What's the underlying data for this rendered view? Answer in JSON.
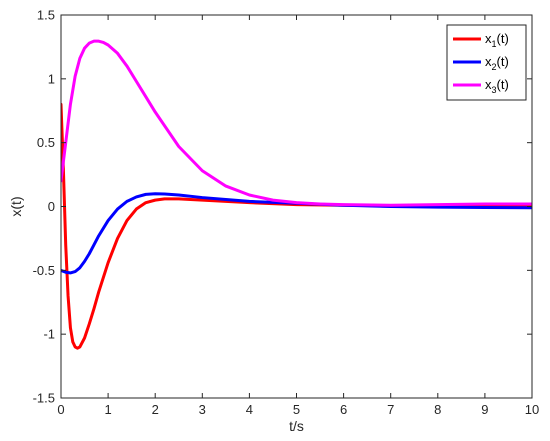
{
  "chart_data": {
    "type": "line",
    "title": "",
    "xlabel": "t/s",
    "ylabel": "x(t)",
    "xlim": [
      0,
      10
    ],
    "ylim": [
      -1.5,
      1.5
    ],
    "xticks": [
      0,
      1,
      2,
      3,
      4,
      5,
      6,
      7,
      8,
      9,
      10
    ],
    "xtick_labels": [
      "0",
      "1",
      "2",
      "3",
      "4",
      "5",
      "6",
      "7",
      "8",
      "9",
      "10"
    ],
    "yticks": [
      -1.5,
      -1,
      -0.5,
      0,
      0.5,
      1,
      1.5
    ],
    "ytick_labels": [
      "-1.5",
      "-1",
      "-0.5",
      "0",
      "0.5",
      "1",
      "1.5"
    ],
    "grid": false,
    "legend_position": "top-right",
    "series": [
      {
        "name": "x1(t)",
        "legend_base": "x",
        "legend_sub": "1",
        "legend_suffix": "(t)",
        "color": "#ff0000",
        "x": [
          0,
          0.05,
          0.1,
          0.15,
          0.2,
          0.25,
          0.3,
          0.35,
          0.4,
          0.5,
          0.6,
          0.7,
          0.8,
          1.0,
          1.2,
          1.4,
          1.6,
          1.8,
          2.0,
          2.2,
          2.5,
          3.0,
          4.0,
          5.0,
          6.0,
          7.0,
          8.0,
          9.0,
          10.0
        ],
        "y": [
          0.8,
          0.3,
          -0.3,
          -0.7,
          -0.95,
          -1.06,
          -1.1,
          -1.11,
          -1.1,
          -1.03,
          -0.92,
          -0.8,
          -0.67,
          -0.44,
          -0.25,
          -0.11,
          -0.02,
          0.03,
          0.05,
          0.06,
          0.06,
          0.05,
          0.03,
          0.015,
          0.01,
          0.005,
          0.0,
          0.0,
          0.0
        ]
      },
      {
        "name": "x2(t)",
        "legend_base": "x",
        "legend_sub": "2",
        "legend_suffix": "(t)",
        "color": "#0000ff",
        "x": [
          0,
          0.1,
          0.2,
          0.3,
          0.4,
          0.5,
          0.6,
          0.7,
          0.8,
          1.0,
          1.2,
          1.4,
          1.6,
          1.8,
          2.0,
          2.2,
          2.5,
          3.0,
          3.5,
          4.0,
          5.0,
          6.0,
          7.0,
          8.0,
          9.0,
          10.0
        ],
        "y": [
          -0.5,
          -0.515,
          -0.52,
          -0.51,
          -0.48,
          -0.43,
          -0.37,
          -0.3,
          -0.23,
          -0.11,
          -0.02,
          0.04,
          0.075,
          0.095,
          0.1,
          0.098,
          0.09,
          0.07,
          0.055,
          0.04,
          0.025,
          0.01,
          0.0,
          -0.005,
          -0.008,
          -0.01
        ]
      },
      {
        "name": "x3(t)",
        "legend_base": "x",
        "legend_sub": "3",
        "legend_suffix": "(t)",
        "color": "#ff00ff",
        "x": [
          0,
          0.05,
          0.1,
          0.2,
          0.3,
          0.4,
          0.5,
          0.6,
          0.7,
          0.8,
          0.9,
          1.0,
          1.2,
          1.4,
          1.6,
          1.8,
          2.0,
          2.5,
          3.0,
          3.5,
          4.0,
          4.5,
          5.0,
          5.5,
          6.0,
          7.0,
          8.0,
          9.0,
          10.0
        ],
        "y": [
          0.2,
          0.35,
          0.5,
          0.8,
          1.02,
          1.16,
          1.24,
          1.28,
          1.295,
          1.295,
          1.285,
          1.265,
          1.2,
          1.1,
          0.98,
          0.86,
          0.74,
          0.47,
          0.28,
          0.16,
          0.09,
          0.05,
          0.03,
          0.02,
          0.015,
          0.01,
          0.015,
          0.02,
          0.02
        ]
      }
    ]
  }
}
